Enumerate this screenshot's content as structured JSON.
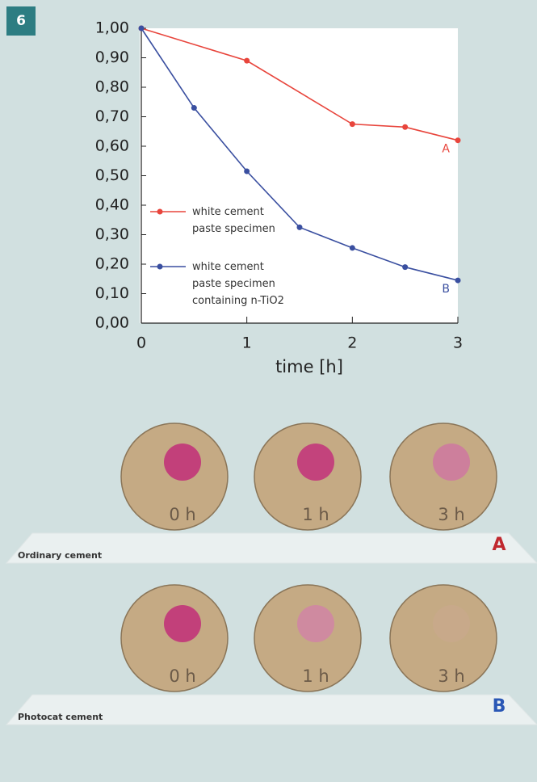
{
  "figure_number": "6",
  "chart_data": {
    "type": "line",
    "xlabel": "time [h]",
    "xlim": [
      0,
      3
    ],
    "xticks": [
      0,
      1,
      2,
      3
    ],
    "ylim": [
      0,
      1
    ],
    "yticks": [
      {
        "value": 0,
        "label": "0,00"
      },
      {
        "value": 0.1,
        "label": "0,10"
      },
      {
        "value": 0.2,
        "label": "0,20"
      },
      {
        "value": 0.3,
        "label": "0,30"
      },
      {
        "value": 0.4,
        "label": "0,40"
      },
      {
        "value": 0.5,
        "label": "0,50"
      },
      {
        "value": 0.6,
        "label": "0,60"
      },
      {
        "value": 0.7,
        "label": "0,70"
      },
      {
        "value": 0.8,
        "label": "0,80"
      },
      {
        "value": 0.9,
        "label": "0,90"
      },
      {
        "value": 1,
        "label": "1,00"
      }
    ],
    "series": [
      {
        "name": "white cement paste specimen",
        "end_label": "A",
        "color": "#e8453c",
        "x": [
          0,
          1,
          2,
          2.5,
          3
        ],
        "values": [
          1.0,
          0.89,
          0.675,
          0.665,
          0.62
        ]
      },
      {
        "name": "white cement paste specimen containing n-TiO2",
        "end_label": "B",
        "color": "#3a4fa0",
        "x": [
          0,
          0.5,
          1,
          1.5,
          2,
          2.5,
          3
        ],
        "values": [
          1.0,
          0.73,
          0.515,
          0.325,
          0.255,
          0.19,
          0.145
        ]
      }
    ]
  },
  "panels": [
    {
      "label": "Ordinary cement",
      "letter": "A",
      "letter_color": "#c0282e",
      "samples": [
        "0 h",
        "1 h",
        "3 h"
      ],
      "spot_colors": [
        "#c2407a",
        "#c3437c",
        "#cd7f9c"
      ]
    },
    {
      "label": "Photocat cement",
      "letter": "B",
      "letter_color": "#2a57b5",
      "samples": [
        "0 h",
        "1 h",
        "3 h"
      ],
      "spot_colors": [
        "#c2407a",
        "#cf8aa0",
        "#c8a98a"
      ]
    }
  ]
}
